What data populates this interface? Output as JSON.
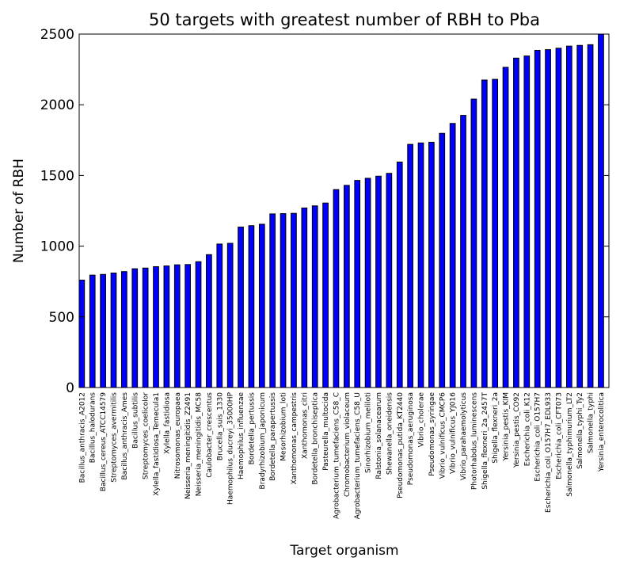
{
  "chart_data": {
    "type": "bar",
    "title": "50 targets with greatest number of RBH to Pba",
    "xlabel": "Target organism",
    "ylabel": "Number of RBH",
    "ylim": [
      0,
      2500
    ],
    "yticks": [
      0,
      500,
      1000,
      1500,
      2000,
      2500
    ],
    "grid": false,
    "legend": "none",
    "bar_color": "#0000ff",
    "categories": [
      "Bacillus_anthracis_A2012",
      "Bacillus_halodurans",
      "Bacillus_cereus_ATCC14579",
      "Streptomyces_avermitilis",
      "Bacillus_anthracis_Ames",
      "Bacillus_subtilis",
      "Streptomyces_coelicolor",
      "Xylella_fastidiosa_Temecula1",
      "Xylella_fastidiosa",
      "Nitrosomonas_europaea",
      "Neisseria_meningitidis_Z2491",
      "Neisseria_meningitidis_MC58",
      "Caulobacter_crescentus",
      "Brucella_suis_1330",
      "Haemophilus_ducreyi_35000HP",
      "Haemophilus_influenzae",
      "Bordetella_pertussis",
      "Bradyrhizobium_japonicum",
      "Bordetella_parapertussis",
      "Mesorhizobium_loti",
      "Xanthomonas_campestris",
      "Xanthomonas_citri",
      "Bordetella_bronchiseptica",
      "Pasteurella_multocida",
      "Agrobacterium_tumefaciens_C58_C",
      "Chromobacterium_violaceum",
      "Agrobacterium_tumefaciens_C58_U",
      "Sinorhizobium_meliloti",
      "Ralstonia_solanacearum",
      "Shewanella_oneidensis",
      "Pseudomonas_putida_KT2440",
      "Pseudomonas_aeruginosa",
      "Vibrio_cholerae",
      "Pseudomonas_syringae",
      "Vibrio_vulnificus_CMCP6",
      "Vibrio_vulnificus_YJ016",
      "Vibrio_parahaemolyticus",
      "Photorhabdus_luminescens",
      "Shigella_flexneri_2a_2457T",
      "Shigella_flexneri_2a",
      "Yersinia_pestis_KIM",
      "Yersinia_pestis_CO92",
      "Escherichia_coli_K12",
      "Escherichia_coli_O157H7",
      "Escherichia_coli_O157H7_EDL933",
      "Escherichia_coli_CFT073",
      "Salmonella_typhimurium_LT2",
      "Salmonella_typhi_Ty2",
      "Salmonella_typhi",
      "Yersinia_enterocolitica"
    ],
    "values": [
      760,
      795,
      800,
      810,
      820,
      840,
      845,
      855,
      860,
      868,
      870,
      890,
      940,
      1015,
      1020,
      1135,
      1145,
      1155,
      1228,
      1230,
      1232,
      1270,
      1285,
      1305,
      1400,
      1430,
      1465,
      1480,
      1495,
      1515,
      1595,
      1720,
      1730,
      1735,
      1798,
      1868,
      1925,
      2040,
      2175,
      2180,
      2265,
      2330,
      2345,
      2385,
      2390,
      2400,
      2415,
      2420,
      2425,
      2500
    ]
  }
}
